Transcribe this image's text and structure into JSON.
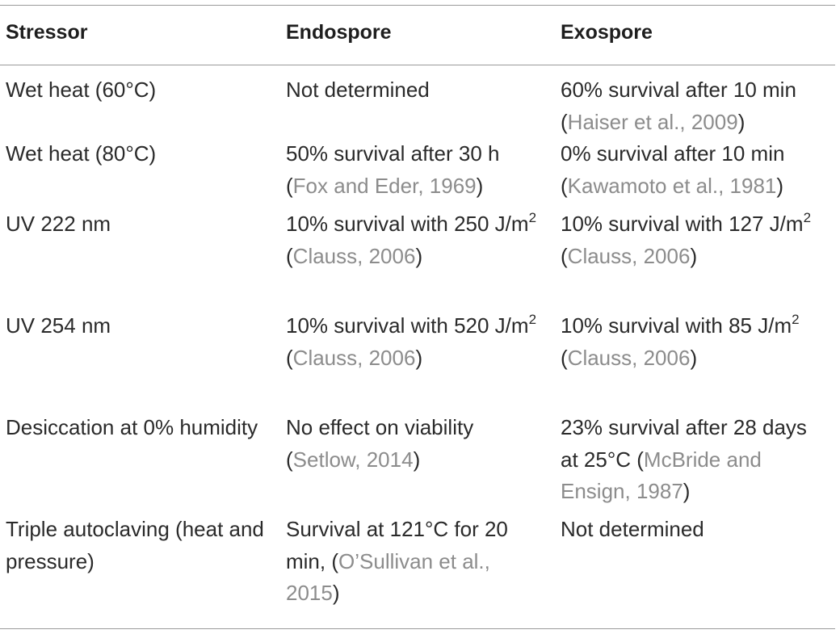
{
  "headers": [
    "Stressor",
    "Endospore",
    "Exospore"
  ],
  "rows": [
    {
      "stressor": "Wet heat (60°C)",
      "endospore": {
        "pre": "Not determined",
        "sup": "",
        "pre2": "",
        "cite": "",
        "post": ""
      },
      "exospore": {
        "pre": "60% survival after 10 min",
        "sup": "",
        "pre2": "",
        "cite": "Haiser et al., 2009",
        "post": ")"
      }
    },
    {
      "stressor": "Wet heat (80°C)",
      "endospore": {
        "pre": "50% survival after 30 h",
        "sup": "",
        "pre2": "",
        "cite": "Fox and Eder, 1969",
        "post": ")"
      },
      "exospore": {
        "pre": "0% survival after 10 min",
        "sup": "",
        "pre2": "",
        "cite": "Kawamoto et al., 1981",
        "post": ")"
      }
    },
    {
      "stressor": "UV 222 nm",
      "endospore": {
        "pre": "10% survival with 250 J/m",
        "sup": "2",
        "pre2": "",
        "cite": "Clauss, 2006",
        "post": ")"
      },
      "exospore": {
        "pre": "10% survival with 127 J/m",
        "sup": "2",
        "pre2": "",
        "cite": "Clauss, 2006",
        "post": ")"
      }
    },
    {
      "stressor": "UV 254 nm",
      "endospore": {
        "pre": "10% survival with 520 J/m",
        "sup": "2",
        "pre2": "",
        "cite": "Clauss, 2006",
        "post": ")"
      },
      "exospore": {
        "pre": "10% survival with 85 J/m",
        "sup": "2",
        "pre2": "",
        "cite": "Clauss, 2006",
        "post": ")"
      }
    },
    {
      "stressor": "Desiccation at 0% humidity",
      "endospore": {
        "pre": "No effect on viability",
        "sup": "",
        "pre2": "",
        "cite": "Setlow, 2014",
        "post": ")"
      },
      "exospore": {
        "pre": "23% survival after 28 days at 25°C",
        "sup": "",
        "pre2": "",
        "cite": "McBride and Ensign, 1987",
        "post": ")"
      }
    },
    {
      "stressor": "Triple autoclaving (heat and pressure)",
      "endospore": {
        "pre": "Survival at 121°C for 20 min,",
        "sup": "",
        "pre2": "",
        "cite": "O’Sullivan et al., 2015",
        "post": ")"
      },
      "exospore": {
        "pre": "Not determined",
        "sup": "",
        "pre2": "",
        "cite": "",
        "post": ""
      }
    }
  ]
}
